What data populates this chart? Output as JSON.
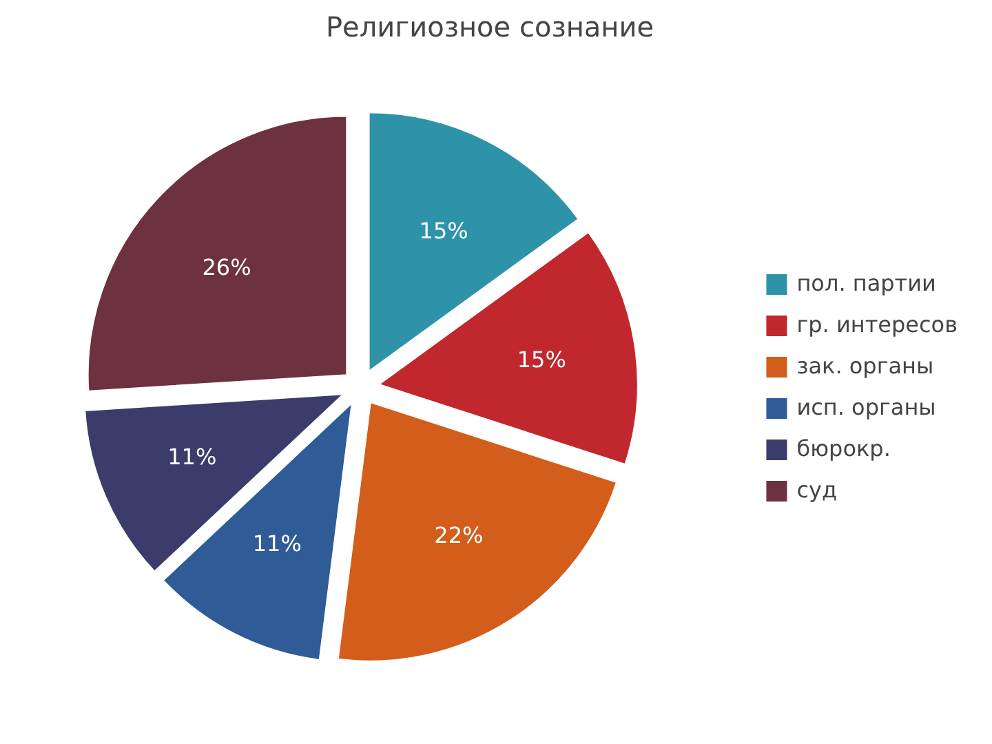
{
  "chart_data": {
    "type": "pie",
    "title": "Религиозное сознание",
    "categories": [
      "пол. партии",
      "гр. интересов",
      "зак. органы",
      "исп. органы",
      "бюрокр.",
      "суд"
    ],
    "values": [
      15,
      15,
      22,
      11,
      11,
      26
    ],
    "colors": [
      "#2e93a8",
      "#c0282e",
      "#d35d1a",
      "#2f5b96",
      "#3b3c6b",
      "#6e3140"
    ],
    "value_labels": [
      "15%",
      "15%",
      "22%",
      "11%",
      "11%",
      "26%"
    ],
    "legend": "right"
  }
}
